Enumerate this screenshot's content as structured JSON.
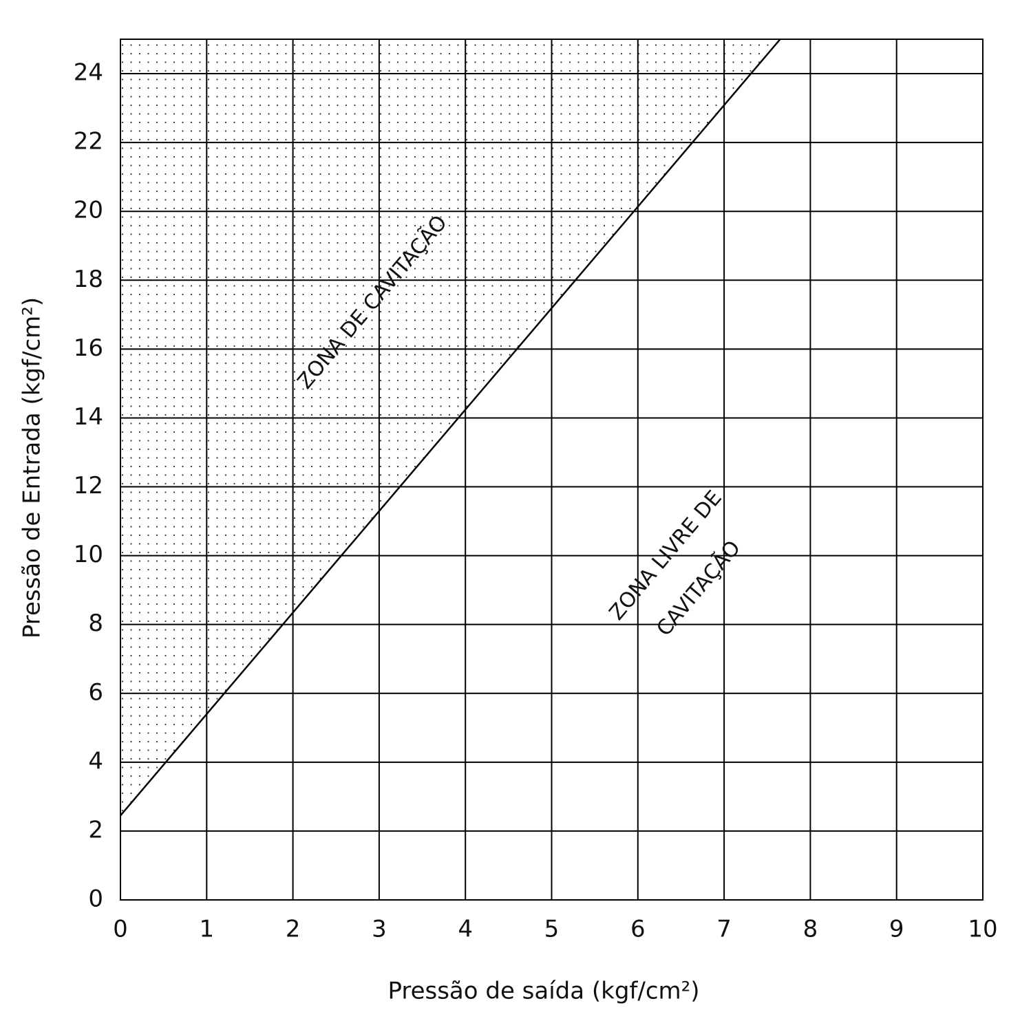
{
  "chart_data": {
    "type": "line",
    "x_label": "Pressão de saída (kgf/cm²)",
    "y_label": "Pressão de Entrada (kgf/cm²)",
    "x": [
      0,
      7.65
    ],
    "values": [
      2.45,
      25
    ],
    "color": "#000000",
    "xlim": [
      0,
      10
    ],
    "xticks": [
      0,
      1,
      2,
      3,
      4,
      5,
      6,
      7,
      8,
      9,
      10
    ],
    "ylim": [
      0,
      25
    ],
    "yticks": [
      0,
      2,
      4,
      6,
      8,
      10,
      12,
      14,
      16,
      18,
      20,
      22,
      24
    ],
    "grid": true,
    "annotations": [
      "ZONA DE CAVITAÇÃO",
      "ZONA LIVRE DE",
      "CAVITAÇÃO"
    ]
  }
}
